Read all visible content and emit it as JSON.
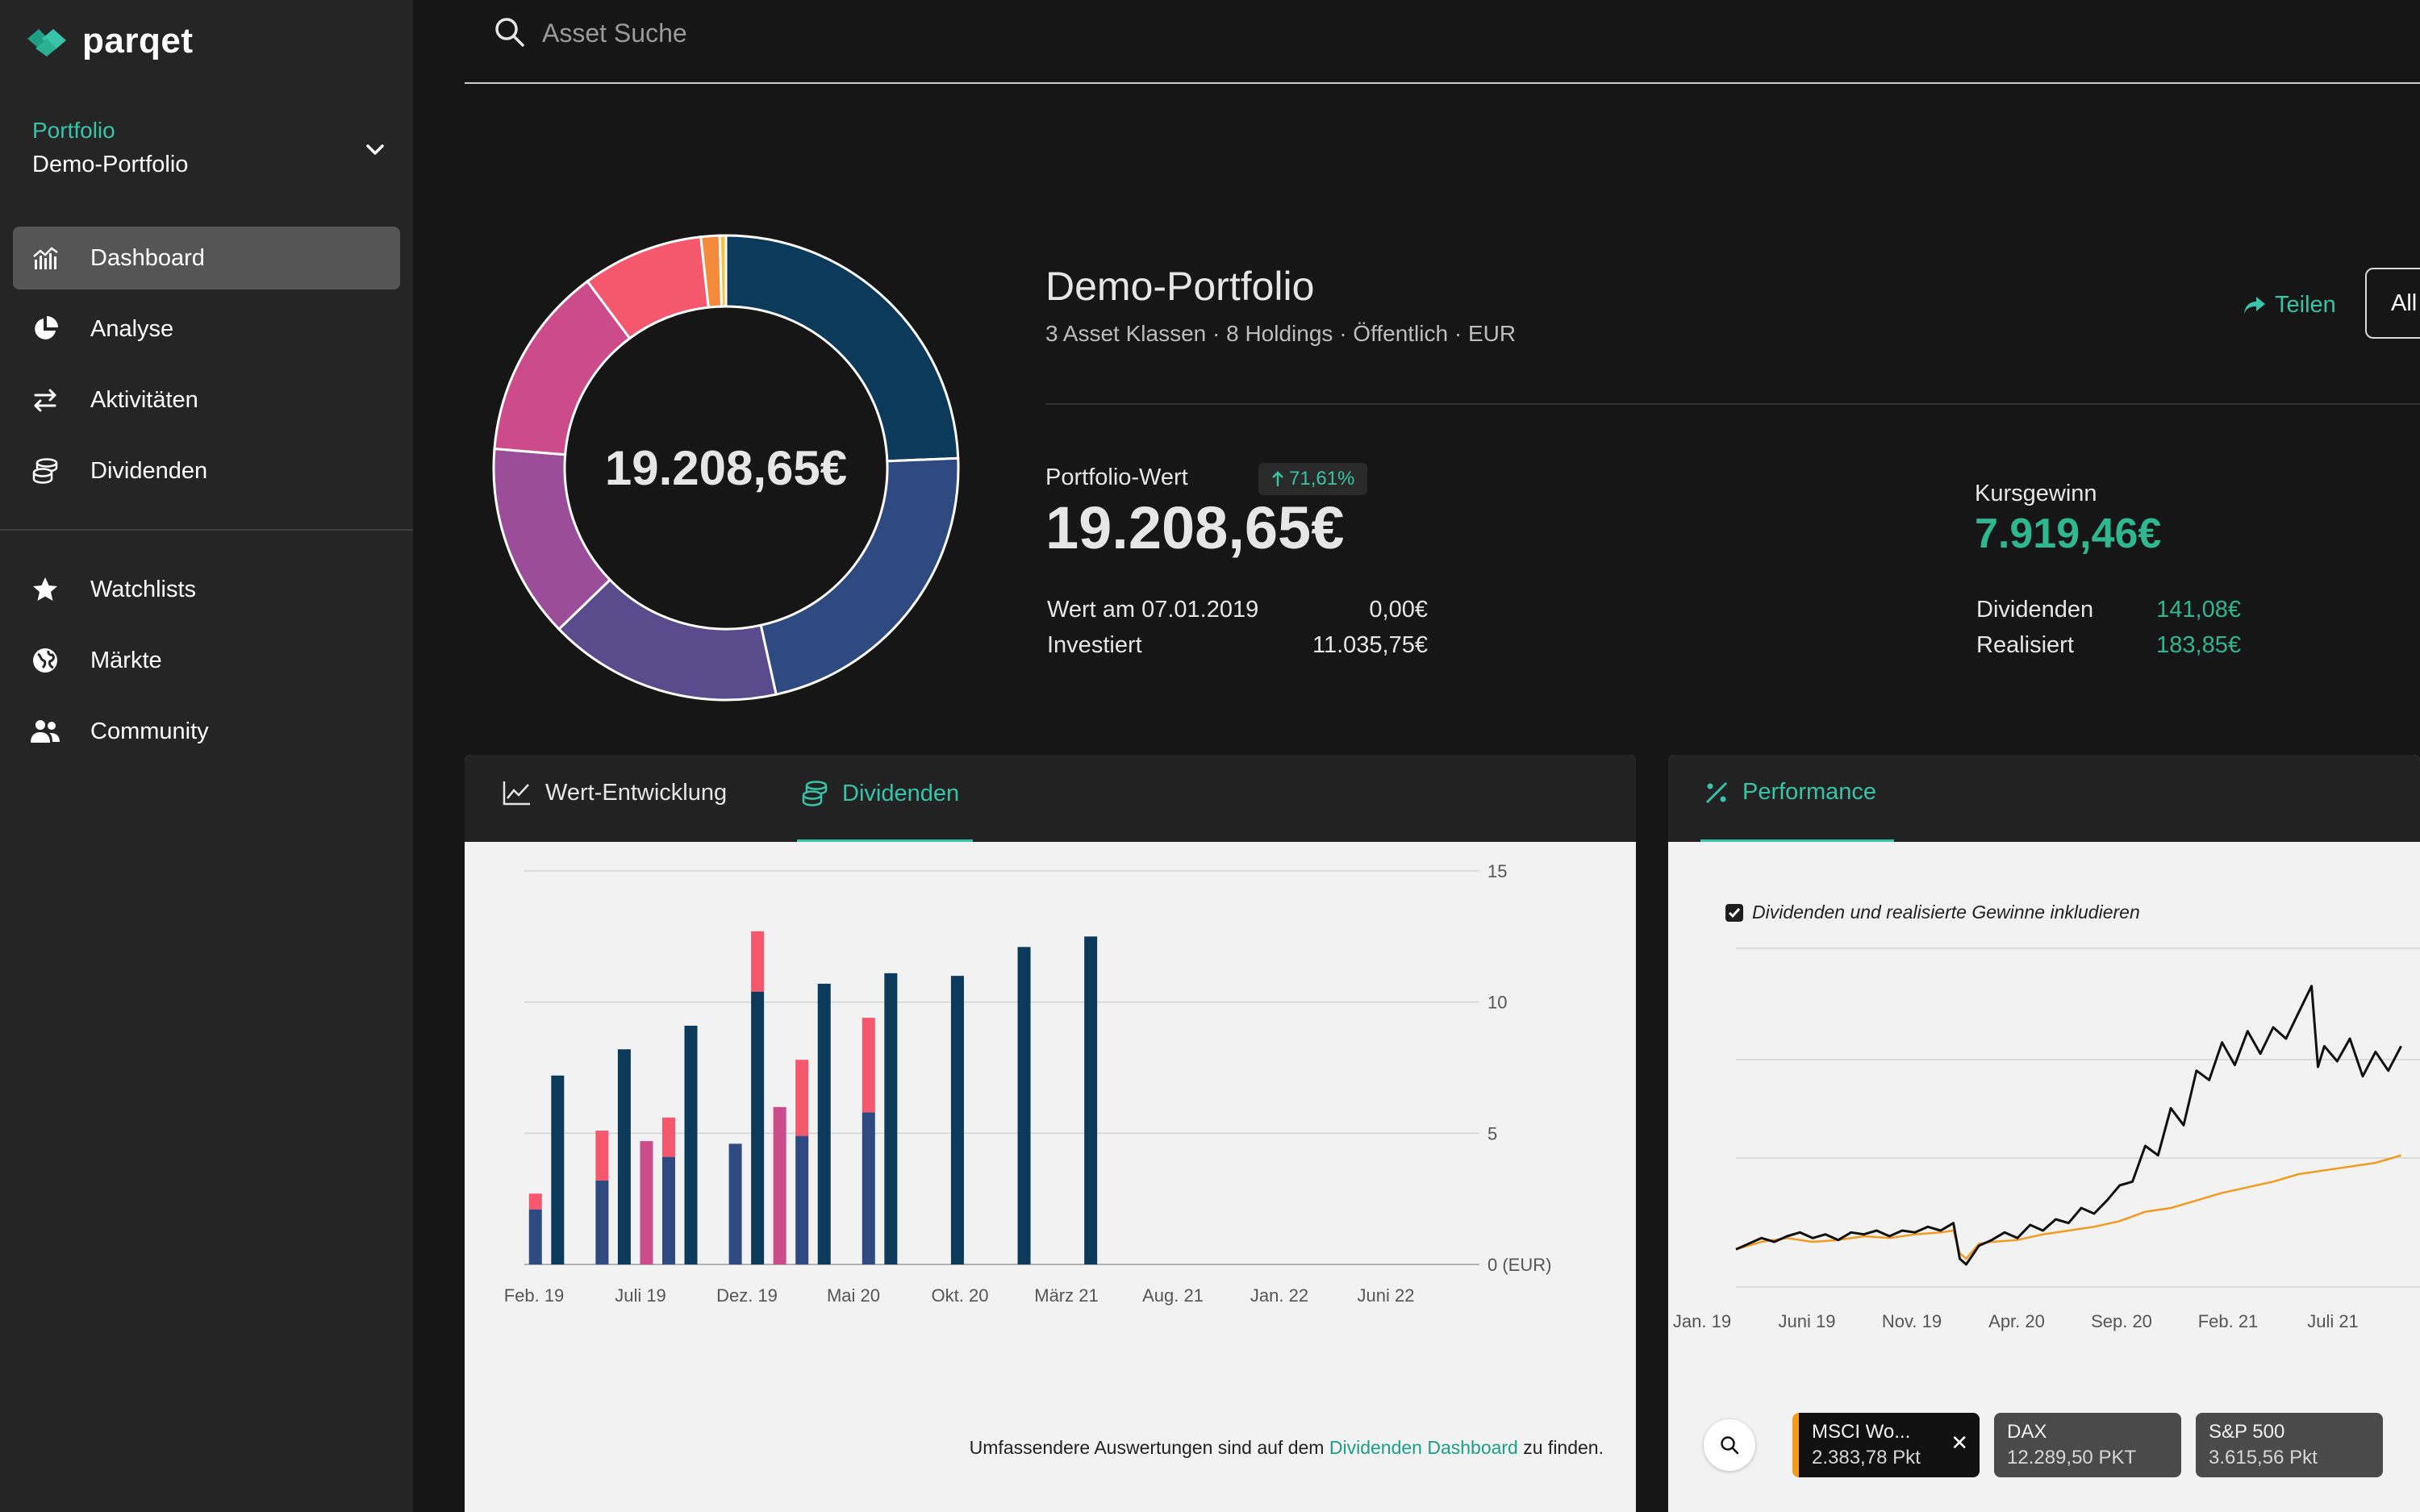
{
  "app": {
    "name": "parqet"
  },
  "sidebar": {
    "portfolio_label": "Portfolio",
    "portfolio_name": "Demo-Portfolio",
    "nav": [
      {
        "label": "Dashboard",
        "icon": "dashboard-chart-icon",
        "active": true
      },
      {
        "label": "Analyse",
        "icon": "pie-chart-icon"
      },
      {
        "label": "Aktivitäten",
        "icon": "swap-arrows-icon"
      },
      {
        "label": "Dividenden",
        "icon": "coin-stack-icon"
      }
    ],
    "nav2": [
      {
        "label": "Watchlists",
        "icon": "star-icon"
      },
      {
        "label": "Märkte",
        "icon": "globe-icon"
      },
      {
        "label": "Community",
        "icon": "people-icon"
      }
    ]
  },
  "search": {
    "placeholder": "Asset Suche"
  },
  "donut": {
    "center_value": "19.208,65€",
    "segments": [
      {
        "value": 22.5,
        "color": "#0b3a5a"
      },
      {
        "value": 20.5,
        "color": "#2e4a80"
      },
      {
        "value": 15.0,
        "color": "#5a4b8c"
      },
      {
        "value": 12.5,
        "color": "#9b4d9a"
      },
      {
        "value": 12.5,
        "color": "#cc4b8a"
      },
      {
        "value": 7.8,
        "color": "#f5576c"
      },
      {
        "value": 1.2,
        "color": "#f48a3c"
      },
      {
        "value": 0.4,
        "color": "#f5c242"
      }
    ]
  },
  "summary": {
    "title": "Demo-Portfolio",
    "meta": "3 Asset Klassen · 8 Holdings · Öffentlich · EUR",
    "share": "Teilen",
    "all": "All",
    "portfolio_value_label": "Portfolio-Wert",
    "change": "71,61%",
    "portfolio_value": "19.208,65€",
    "rows_left": [
      {
        "label": "Wert am 07.01.2019",
        "value": "0,00€"
      },
      {
        "label": "Investiert",
        "value": "11.035,75€"
      }
    ],
    "kursgewinn_label": "Kursgewinn",
    "kursgewinn_value": "7.919,46€",
    "rows_right": [
      {
        "label": "Dividenden",
        "value": "141,08€"
      },
      {
        "label": "Realisiert",
        "value": "183,85€"
      }
    ]
  },
  "colors": {
    "accent": "#37c4a8",
    "positive": "#2fb78f",
    "bar_dark": "#0b3a5a",
    "bar_blue": "#2e4a80",
    "bar_pink": "#cc4b8a",
    "bar_red": "#f5576c",
    "line_portfolio": "#111111",
    "line_index": "#f29a1e"
  },
  "left_card": {
    "tabs": [
      {
        "label": "Wert-Entwicklung",
        "icon": "line-chart-icon"
      },
      {
        "label": "Dividenden",
        "icon": "coin-stack-icon",
        "active": true
      }
    ],
    "footnote_pre": "Umfassendere Auswertungen sind auf dem",
    "footnote_link": "Dividenden Dashboard",
    "footnote_post": "zu finden."
  },
  "right_card": {
    "tab": "Performance",
    "checkbox_label": "Dividenden und realisierte Gewinne inkludieren",
    "indices": [
      {
        "name": "MSCI Wo...",
        "value": "2.383,78 Pkt",
        "active": true
      },
      {
        "name": "DAX",
        "value": "12.289,50 PKT"
      },
      {
        "name": "S&P 500",
        "value": "3.615,56 Pkt"
      }
    ]
  },
  "chart_data": [
    {
      "type": "bar",
      "stacked": true,
      "title": "Dividenden",
      "x_labels": [
        "Feb. 19",
        "Juli 19",
        "Dez. 19",
        "Mai 20",
        "Okt. 20",
        "März 21",
        "Aug. 21",
        "Jan. 22",
        "Juni 22"
      ],
      "y_ticks": [
        "0 (EUR)",
        "5",
        "10",
        "15"
      ],
      "ylim": [
        0,
        15
      ],
      "slots": 43,
      "series_names": [
        "dark",
        "blue",
        "pink",
        "red"
      ],
      "bars": [
        {
          "slot": 0.5,
          "segments": {
            "red": 0.6,
            "blue": 2.1
          }
        },
        {
          "slot": 1.5,
          "segments": {
            "dark": 7.2
          }
        },
        {
          "slot": 3.5,
          "segments": {
            "red": 1.9,
            "blue": 3.2
          }
        },
        {
          "slot": 4.5,
          "segments": {
            "dark": 8.2
          }
        },
        {
          "slot": 5.5,
          "segments": {
            "pink": 4.7
          }
        },
        {
          "slot": 6.5,
          "segments": {
            "red": 1.5,
            "blue": 4.1
          }
        },
        {
          "slot": 7.5,
          "segments": {
            "dark": 9.1
          }
        },
        {
          "slot": 9.5,
          "segments": {
            "blue": 4.6
          }
        },
        {
          "slot": 10.5,
          "segments": {
            "dark": 10.4,
            "red": 2.3
          }
        },
        {
          "slot": 11.5,
          "segments": {
            "pink": 6.0
          }
        },
        {
          "slot": 12.5,
          "segments": {
            "red": 2.9,
            "blue": 4.9
          }
        },
        {
          "slot": 13.5,
          "segments": {
            "dark": 10.7
          }
        },
        {
          "slot": 15.5,
          "segments": {
            "red": 3.6,
            "blue": 5.8
          }
        },
        {
          "slot": 16.5,
          "segments": {
            "dark": 11.1
          }
        },
        {
          "slot": 19.5,
          "segments": {
            "dark": 11.0
          }
        },
        {
          "slot": 22.5,
          "segments": {
            "dark": 12.1
          }
        },
        {
          "slot": 25.5,
          "segments": {
            "dark": 12.5
          }
        }
      ]
    },
    {
      "type": "line",
      "title": "Performance",
      "x_labels": [
        "Jan. 19",
        "Juni 19",
        "Nov. 19",
        "Apr. 20",
        "Sep. 20",
        "Feb. 21",
        "Juli 21"
      ],
      "ylim": [
        -20,
        160
      ],
      "series": [
        {
          "name": "Portfolio",
          "points": [
            [
              0,
              0
            ],
            [
              1,
              3
            ],
            [
              2,
              6
            ],
            [
              3,
              4
            ],
            [
              4,
              7
            ],
            [
              5,
              9
            ],
            [
              6,
              6
            ],
            [
              7,
              8
            ],
            [
              8,
              5
            ],
            [
              9,
              9
            ],
            [
              10,
              8
            ],
            [
              11,
              10
            ],
            [
              12,
              7
            ],
            [
              13,
              10
            ],
            [
              14,
              9
            ],
            [
              15,
              12
            ],
            [
              16,
              10
            ],
            [
              17,
              14
            ],
            [
              17.5,
              -5
            ],
            [
              18,
              -8
            ],
            [
              19,
              2
            ],
            [
              20,
              5
            ],
            [
              21,
              9
            ],
            [
              22,
              6
            ],
            [
              23,
              13
            ],
            [
              24,
              10
            ],
            [
              25,
              16
            ],
            [
              26,
              14
            ],
            [
              27,
              22
            ],
            [
              28,
              19
            ],
            [
              29,
              26
            ],
            [
              30,
              34
            ],
            [
              31,
              36
            ],
            [
              32,
              55
            ],
            [
              33,
              50
            ],
            [
              34,
              75
            ],
            [
              35,
              66
            ],
            [
              36,
              95
            ],
            [
              37,
              90
            ],
            [
              38,
              110
            ],
            [
              39,
              98
            ],
            [
              40,
              116
            ],
            [
              41,
              104
            ],
            [
              42,
              118
            ],
            [
              43,
              112
            ],
            [
              44,
              126
            ],
            [
              45,
              140
            ],
            [
              45.5,
              97
            ],
            [
              46,
              108
            ],
            [
              47,
              100
            ],
            [
              48,
              112
            ],
            [
              49,
              92
            ],
            [
              50,
              105
            ],
            [
              51,
              95
            ],
            [
              52,
              108
            ]
          ]
        },
        {
          "name": "MSCI World",
          "points": [
            [
              0,
              0
            ],
            [
              2,
              4
            ],
            [
              4,
              6
            ],
            [
              6,
              4
            ],
            [
              8,
              5
            ],
            [
              10,
              7
            ],
            [
              12,
              6
            ],
            [
              14,
              8
            ],
            [
              16,
              9
            ],
            [
              17,
              10
            ],
            [
              17.5,
              -2
            ],
            [
              18,
              -5
            ],
            [
              19,
              3
            ],
            [
              20,
              4
            ],
            [
              22,
              5
            ],
            [
              24,
              8
            ],
            [
              26,
              10
            ],
            [
              28,
              12
            ],
            [
              30,
              15
            ],
            [
              32,
              20
            ],
            [
              34,
              22
            ],
            [
              36,
              26
            ],
            [
              38,
              30
            ],
            [
              40,
              33
            ],
            [
              42,
              36
            ],
            [
              44,
              40
            ],
            [
              46,
              42
            ],
            [
              48,
              44
            ],
            [
              50,
              46
            ],
            [
              52,
              50
            ]
          ]
        }
      ]
    }
  ]
}
